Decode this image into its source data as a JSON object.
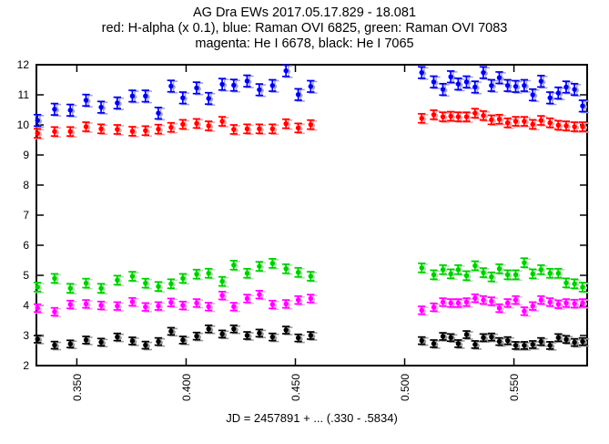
{
  "chart_data": {
    "type": "scatter",
    "title_lines": [
      "AG Dra EWs 2017.05.17.829 - 18.081",
      "red: H-alpha (x 0.1), blue: Raman OVI 6825, green: Raman OVI 7083",
      "magenta: He I 6678, black: He I 7065"
    ],
    "xlabel": "JD = 2457891 + ... (.330 - .5834)",
    "ylabel": "",
    "xlim": [
      0.3315,
      0.5835
    ],
    "ylim": [
      2,
      12
    ],
    "grid": false,
    "legend_position": "in-title",
    "x_ticks": [
      {
        "v": 0.35,
        "label": "0.350"
      },
      {
        "v": 0.4,
        "label": "0.400"
      },
      {
        "v": 0.45,
        "label": "0.450"
      },
      {
        "v": 0.5,
        "label": "0.500"
      },
      {
        "v": 0.55,
        "label": "0.550"
      }
    ],
    "y_ticks": [
      {
        "v": 2,
        "label": "2"
      },
      {
        "v": 3,
        "label": "3"
      },
      {
        "v": 4,
        "label": "4"
      },
      {
        "v": 5,
        "label": "5"
      },
      {
        "v": 6,
        "label": "6"
      },
      {
        "v": 7,
        "label": "7"
      },
      {
        "v": 8,
        "label": "8"
      },
      {
        "v": 9,
        "label": "9"
      },
      {
        "v": 10,
        "label": "10"
      },
      {
        "v": 11,
        "label": "11"
      },
      {
        "v": 12,
        "label": "12"
      }
    ],
    "x": [
      0.332,
      0.3398,
      0.347,
      0.3542,
      0.3611,
      0.3685,
      0.3754,
      0.3814,
      0.3873,
      0.3931,
      0.3985,
      0.4048,
      0.4103,
      0.4165,
      0.4218,
      0.4279,
      0.4335,
      0.4395,
      0.4457,
      0.4513,
      0.457,
      0.5078,
      0.5133,
      0.5175,
      0.5211,
      0.5245,
      0.5283,
      0.5322,
      0.536,
      0.5397,
      0.5433,
      0.5471,
      0.5508,
      0.5547,
      0.5586,
      0.5624,
      0.5665,
      0.5703,
      0.5739,
      0.5777,
      0.5814
    ],
    "series": [
      {
        "name": "Raman OVI 7083",
        "color": "#00cc00",
        "shadow": "#9dee9d",
        "err": 0.15,
        "values": [
          4.61,
          4.9,
          4.57,
          4.74,
          4.57,
          4.84,
          4.97,
          4.74,
          4.63,
          4.72,
          4.9,
          5.04,
          5.07,
          4.8,
          5.34,
          5.07,
          5.3,
          5.4,
          5.22,
          5.1,
          4.97,
          5.25,
          5.02,
          5.19,
          5.05,
          5.19,
          4.99,
          5.32,
          5.09,
          4.95,
          5.22,
          5.02,
          5.02,
          5.42,
          5.05,
          5.19,
          5.07,
          5.07,
          4.75,
          4.72,
          4.61
        ]
      },
      {
        "name": "He I 6678",
        "color": "#ff00ff",
        "shadow": "#ff9df2",
        "err": 0.13,
        "values": [
          3.91,
          3.79,
          4.03,
          4.05,
          4.0,
          3.98,
          4.12,
          3.95,
          3.98,
          4.1,
          4.0,
          4.08,
          3.96,
          4.33,
          3.96,
          4.23,
          4.36,
          4.03,
          4.05,
          4.18,
          4.23,
          3.84,
          3.94,
          4.11,
          4.08,
          4.08,
          4.11,
          4.24,
          4.18,
          4.14,
          3.91,
          4.08,
          4.18,
          3.81,
          3.98,
          4.18,
          4.11,
          4.04,
          4.08,
          4.06,
          4.08
        ]
      },
      {
        "name": "He I 7065",
        "color": "#000000",
        "shadow": "#9a9a9a",
        "err": 0.12,
        "values": [
          2.88,
          2.68,
          2.72,
          2.85,
          2.78,
          2.95,
          2.82,
          2.68,
          2.8,
          3.14,
          2.85,
          2.98,
          3.22,
          3.05,
          3.22,
          3.0,
          3.08,
          2.95,
          3.18,
          2.92,
          3.0,
          2.83,
          2.73,
          2.97,
          2.93,
          2.73,
          3.03,
          2.7,
          2.93,
          2.95,
          2.8,
          2.83,
          2.67,
          2.67,
          2.7,
          2.8,
          2.67,
          2.93,
          2.87,
          2.77,
          2.8
        ]
      },
      {
        "name": "H-alpha (x 0.1)",
        "color": "#ff0000",
        "shadow": "#ff9d9d",
        "err": 0.15,
        "values": [
          9.72,
          9.78,
          9.78,
          9.94,
          9.87,
          9.85,
          9.79,
          9.81,
          9.86,
          9.92,
          10.02,
          10.05,
          9.97,
          10.12,
          9.85,
          9.87,
          9.87,
          9.87,
          10.04,
          9.9,
          10.01,
          10.22,
          10.34,
          10.27,
          10.29,
          10.27,
          10.27,
          10.39,
          10.31,
          10.17,
          10.19,
          10.07,
          10.12,
          10.12,
          10.02,
          10.15,
          10.07,
          9.99,
          9.97,
          9.94,
          9.94
        ]
      },
      {
        "name": "Raman OVI 6825",
        "color": "#0000e0",
        "shadow": "#9d9dff",
        "err": 0.19,
        "values": [
          10.15,
          10.52,
          10.49,
          10.82,
          10.59,
          10.73,
          10.96,
          10.96,
          10.39,
          11.29,
          10.9,
          11.23,
          10.88,
          11.35,
          11.32,
          11.46,
          11.17,
          11.31,
          11.8,
          11.01,
          11.28,
          11.74,
          11.43,
          11.18,
          11.6,
          11.36,
          11.43,
          11.26,
          11.74,
          11.31,
          11.57,
          11.31,
          11.28,
          11.31,
          11.0,
          11.45,
          10.9,
          11.06,
          11.26,
          11.18,
          10.63
        ]
      }
    ]
  }
}
